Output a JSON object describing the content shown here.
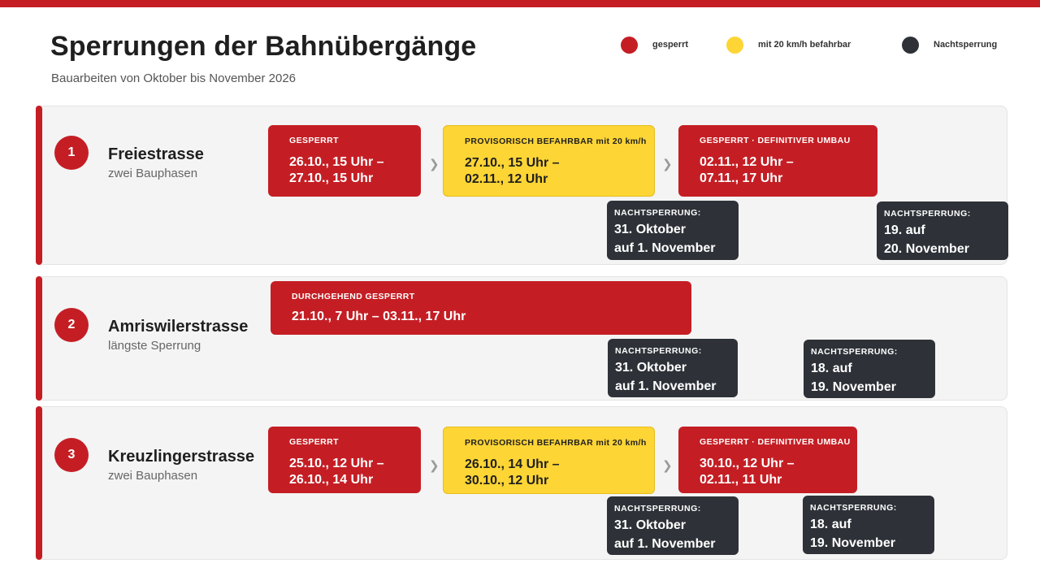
{
  "header": {
    "title": "Sperrungen der Bahnübergänge",
    "subtitle": "Bauarbeiten von Oktober bis November 2026"
  },
  "legend": [
    {
      "label": "gesperrt",
      "color": "#c41e24"
    },
    {
      "label": "mit 20 km/h befahrbar",
      "color": "#fdd535"
    },
    {
      "label": "Nachtsperrung",
      "color": "#2e3238"
    }
  ],
  "colors": {
    "closed": "#c41e24",
    "provisional": "#fdd535",
    "night": "#2e3238",
    "arrow": "#9a9a9a",
    "arrow_icon": "chevron-right-icon"
  },
  "crossings": [
    {
      "number": "1",
      "name": "Freiestrasse",
      "description": "zwei Bauphasen",
      "phases": [
        {
          "type": "closed",
          "label": "GESPERRT",
          "dates": "26.10., 15 Uhr –\n27.10., 15 Uhr"
        },
        {
          "type": "provisional",
          "label": "PROVISORISCH BEFAHRBAR mit 20 km/h",
          "dates": "27.10., 15 Uhr –\n02.11., 12 Uhr"
        },
        {
          "type": "closed",
          "label": "GESPERRT · DEFINITIVER UMBAU",
          "dates": "02.11., 12 Uhr –\n07.11., 17 Uhr"
        }
      ],
      "night_closures": [
        {
          "label": "NACHTSPERRUNG:",
          "dates": "31. Oktober\nauf 1. November"
        },
        {
          "label": "NACHTSPERRUNG:",
          "dates": "19. auf\n20. November"
        }
      ]
    },
    {
      "number": "2",
      "name": "Amriswilerstrasse",
      "description": "längste Sperrung",
      "phases": [
        {
          "type": "closed",
          "label": "DURCHGEHEND GESPERRT",
          "dates": "21.10., 7 Uhr – 03.11., 17 Uhr"
        }
      ],
      "night_closures": [
        {
          "label": "NACHTSPERRUNG:",
          "dates": "31. Oktober\nauf 1. November"
        },
        {
          "label": "NACHTSPERRUNG:",
          "dates": "18. auf\n19. November"
        }
      ]
    },
    {
      "number": "3",
      "name": "Kreuzlingerstrasse",
      "description": "zwei Bauphasen",
      "phases": [
        {
          "type": "closed",
          "label": "GESPERRT",
          "dates": "25.10., 12 Uhr –\n26.10., 14 Uhr"
        },
        {
          "type": "provisional",
          "label": "PROVISORISCH BEFAHRBAR mit 20 km/h",
          "dates": "26.10., 14 Uhr –\n30.10., 12 Uhr"
        },
        {
          "type": "closed",
          "label": "GESPERRT · DEFINITIVER UMBAU",
          "dates": "30.10., 12 Uhr –\n02.11., 11 Uhr"
        }
      ],
      "night_closures": [
        {
          "label": "NACHTSPERRUNG:",
          "dates": "31. Oktober\nauf 1. November"
        },
        {
          "label": "NACHTSPERRUNG:",
          "dates": "18. auf\n19. November"
        }
      ]
    }
  ]
}
